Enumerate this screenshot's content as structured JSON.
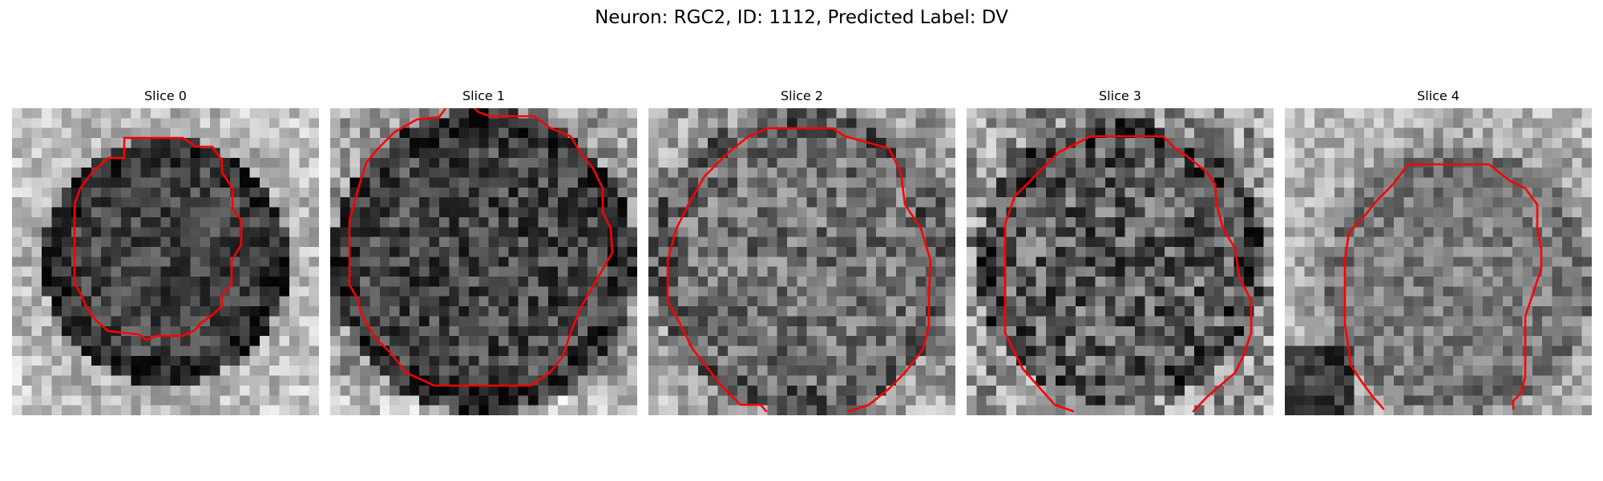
{
  "figure": {
    "title": "Neuron: RGC2, ID: 1112, Predicted Label: DV"
  },
  "colors": {
    "contour": "#ff0000",
    "background": "#ffffff"
  },
  "panels": [
    {
      "title": "Slice 0",
      "image": "grayscale-microscopy-slice",
      "contour": "red-cell-outline"
    },
    {
      "title": "Slice 1",
      "image": "grayscale-microscopy-slice",
      "contour": "red-cell-outline"
    },
    {
      "title": "Slice 2",
      "image": "grayscale-microscopy-slice",
      "contour": "red-cell-outline"
    },
    {
      "title": "Slice 3",
      "image": "grayscale-microscopy-slice",
      "contour": "red-cell-outline"
    },
    {
      "title": "Slice 4",
      "image": "grayscale-microscopy-slice",
      "contour": "red-cell-outline"
    }
  ]
}
